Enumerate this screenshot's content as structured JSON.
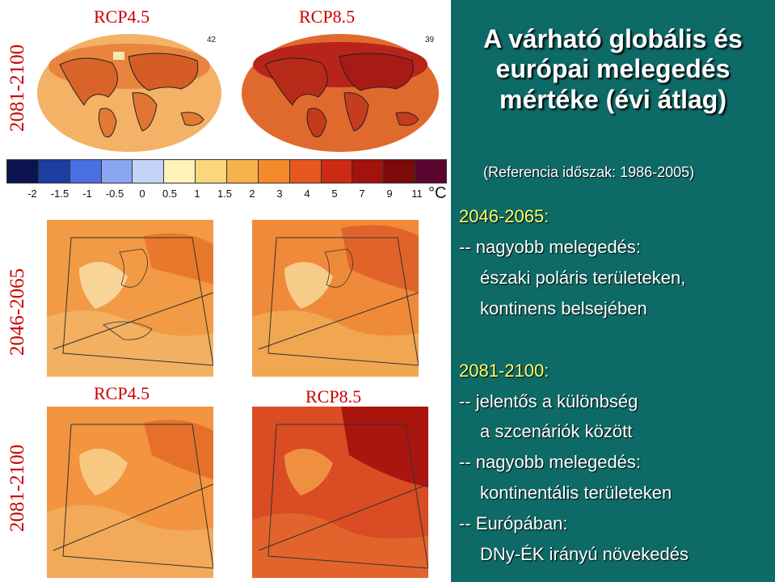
{
  "labels": {
    "row_top": "2081-2100",
    "row_middle": "2046-2065",
    "row_bottom": "2081-2100",
    "rcp45_top": "RCP4.5",
    "rcp85_top": "RCP8.5",
    "rcp45_bottom": "RCP4.5",
    "rcp85_bottom": "RCP8.5",
    "badge_left": "42",
    "badge_right": "39"
  },
  "scale": {
    "colors": [
      "#0c1450",
      "#1d3ea0",
      "#4a6fe0",
      "#8ba6f0",
      "#c4d3f8",
      "#fdf2b8",
      "#fbd67a",
      "#f7b24c",
      "#f48a2c",
      "#e8571e",
      "#cc2a14",
      "#a4120c",
      "#7c0a0a",
      "#5c0430"
    ],
    "ticks": [
      "-2",
      "-1.5",
      "-1",
      "-0.5",
      "0",
      "0.5",
      "1",
      "1.5",
      "2",
      "3",
      "4",
      "5",
      "7",
      "9",
      "11"
    ],
    "unit": "°C"
  },
  "panel": {
    "title_line1": "A várható globális és",
    "title_line2": "európai melegedés",
    "title_line3": "mértéke (évi átlag)",
    "reference": "(Referencia időszak: 1986-2005)",
    "p1_period": "2046-2065:",
    "p1_line1": "-- nagyobb melegedés:",
    "p1_line2": "északi poláris területeken,",
    "p1_line3": "kontinens belsejében",
    "p2_period": "2081-2100:",
    "p2_line1": "-- jelentős a különbség",
    "p2_line2": "a szcenáriók között",
    "p2_line3": "-- nagyobb melegedés:",
    "p2_line4": "kontinentális területeken",
    "p2_line5": "-- Európában:",
    "p2_line6": "DNy-ÉK irányú növekedés"
  }
}
